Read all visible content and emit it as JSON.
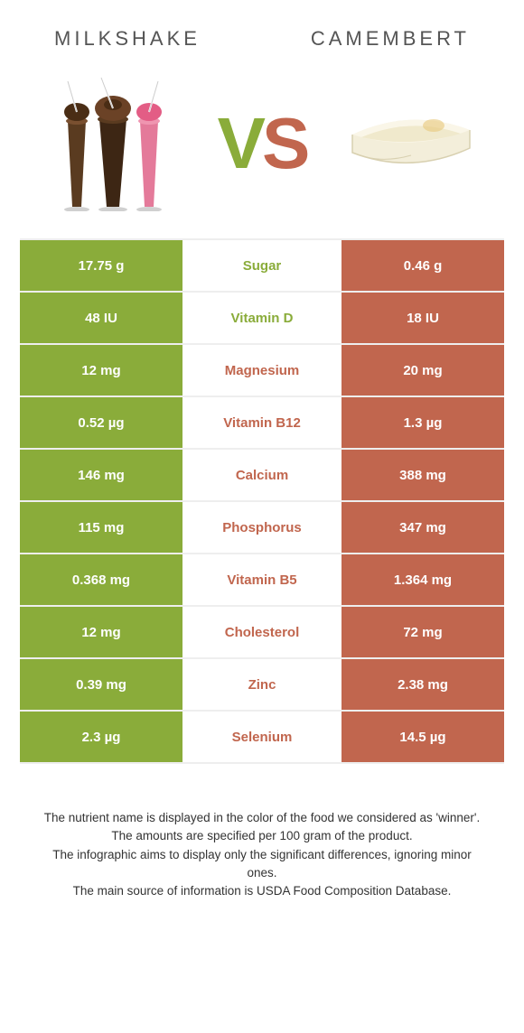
{
  "colors": {
    "left": "#8aac3a",
    "right": "#c1664e",
    "row_border": "#eeeeee",
    "title_text": "#555555",
    "footer_text": "#333333"
  },
  "header": {
    "left_title": "MILKSHAKE",
    "right_title": "CAMEMBERT"
  },
  "vs": {
    "v": "V",
    "s": "S"
  },
  "rows": [
    {
      "left": "17.75 g",
      "mid": "Sugar",
      "right": "0.46 g",
      "winner": "left"
    },
    {
      "left": "48 IU",
      "mid": "Vitamin D",
      "right": "18 IU",
      "winner": "left"
    },
    {
      "left": "12 mg",
      "mid": "Magnesium",
      "right": "20 mg",
      "winner": "right"
    },
    {
      "left": "0.52 µg",
      "mid": "Vitamin B12",
      "right": "1.3 µg",
      "winner": "right"
    },
    {
      "left": "146 mg",
      "mid": "Calcium",
      "right": "388 mg",
      "winner": "right"
    },
    {
      "left": "115 mg",
      "mid": "Phosphorus",
      "right": "347 mg",
      "winner": "right"
    },
    {
      "left": "0.368 mg",
      "mid": "Vitamin B5",
      "right": "1.364 mg",
      "winner": "right"
    },
    {
      "left": "12 mg",
      "mid": "Cholesterol",
      "right": "72 mg",
      "winner": "right"
    },
    {
      "left": "0.39 mg",
      "mid": "Zinc",
      "right": "2.38 mg",
      "winner": "right"
    },
    {
      "left": "2.3 µg",
      "mid": "Selenium",
      "right": "14.5 µg",
      "winner": "right"
    }
  ],
  "footer": {
    "l1": "The nutrient name is displayed in the color of the food we considered as 'winner'.",
    "l2": "The amounts are specified per 100 gram of the product.",
    "l3": "The infographic aims to display only the significant differences, ignoring minor ones.",
    "l4": "The main source of information is USDA Food Composition Database."
  }
}
